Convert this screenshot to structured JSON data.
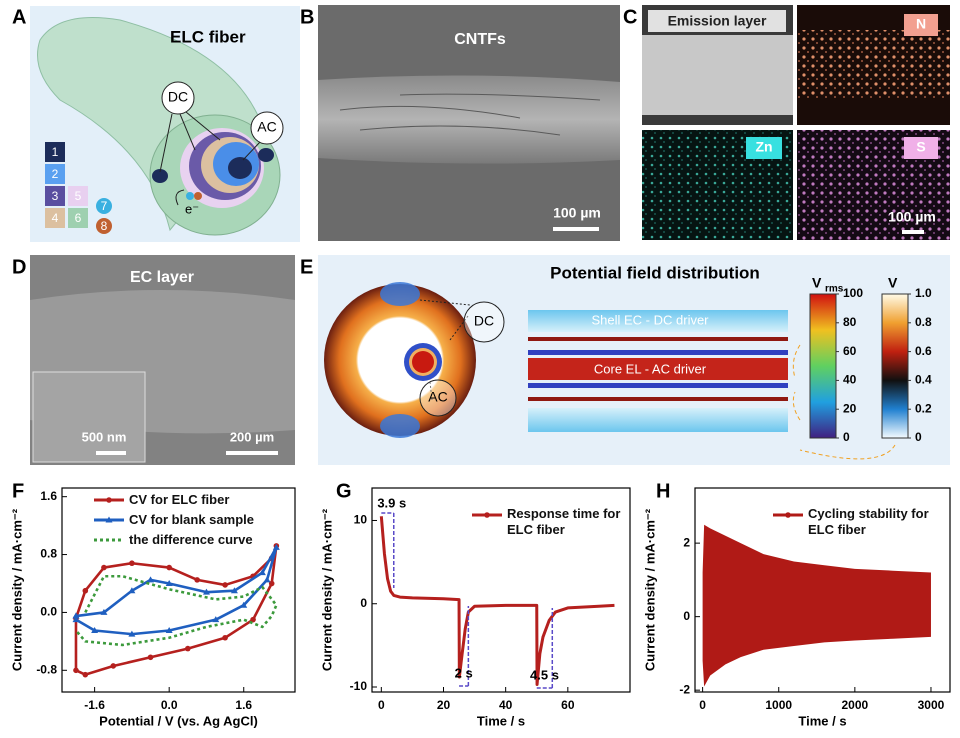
{
  "panels": {
    "A": {
      "label": "A",
      "title": "ELC fiber",
      "dc": "DC",
      "ac": "AC",
      "electron": "e⁻",
      "legend": [
        "1",
        "2",
        "3",
        "4",
        "5",
        "6",
        "7",
        "8"
      ]
    },
    "B": {
      "label": "B",
      "title": "CNTFs",
      "scale_bar": "100 µm"
    },
    "C": {
      "label": "C",
      "tiles": [
        "Emission layer",
        "N",
        "Zn",
        "S"
      ],
      "scale_bar": "100 µm"
    },
    "D": {
      "label": "D",
      "title": "EC layer",
      "inset_scale_bar": "500 nm",
      "scale_bar": "200 µm"
    },
    "E": {
      "label": "E",
      "title": "Potential field distribution",
      "dc": "DC",
      "ac": "AC",
      "shell": "Shell EC - DC driver",
      "core": "Core EL - AC driver",
      "colorbar1": {
        "label": "V",
        "sub": "rms",
        "lim": [
          0,
          100
        ],
        "ticks": [
          100,
          80,
          60,
          40,
          20,
          0
        ]
      },
      "colorbar2": {
        "label": "V",
        "lim": [
          0,
          1
        ],
        "ticks": [
          {
            "value": 1,
            "label": "1.0"
          },
          {
            "value": 0.8,
            "label": "0.8"
          },
          {
            "value": 0.6,
            "label": "0.6"
          },
          {
            "value": 0.4,
            "label": "0.4"
          },
          {
            "value": 0.2,
            "label": "0.2"
          },
          0
        ]
      }
    }
  },
  "chart_data": [
    {
      "type": "line",
      "panel": "F",
      "xlabel": "Potential / V (vs. Ag AgCl)",
      "ylabel": "Current density / mA·cm⁻²",
      "xlim": [
        -2.3,
        2.7
      ],
      "ylim": [
        -1.1,
        1.72
      ],
      "xticks": [
        -1.6,
        {
          "value": 0,
          "label": "0.0"
        },
        1.6
      ],
      "yticks": [
        -0.8,
        {
          "value": 0,
          "label": "0.0"
        },
        0.8,
        1.6
      ],
      "legend": "upper left",
      "series": [
        {
          "name": "CV for ELC fiber",
          "color": "#b5201e",
          "marker": "circle",
          "x": [
            -2.0,
            -1.8,
            -1.4,
            -0.8,
            0.0,
            0.6,
            1.2,
            1.8,
            2.2,
            2.3,
            2.2,
            1.8,
            1.2,
            0.4,
            -0.4,
            -1.2,
            -1.8,
            -2.0,
            -2.0
          ],
          "values": [
            -0.08,
            0.3,
            0.62,
            0.68,
            0.62,
            0.45,
            0.38,
            0.5,
            0.75,
            0.92,
            0.4,
            -0.1,
            -0.35,
            -0.5,
            -0.62,
            -0.74,
            -0.86,
            -0.8,
            -0.08
          ]
        },
        {
          "name": "CV for blank sample",
          "color": "#1f5fc0",
          "marker": "triangle",
          "x": [
            -2.0,
            -1.4,
            -0.8,
            -0.4,
            0.0,
            0.8,
            1.4,
            2.0,
            2.3,
            2.1,
            1.6,
            1.0,
            0.0,
            -0.8,
            -1.6,
            -2.0,
            -2.0
          ],
          "values": [
            -0.05,
            0.0,
            0.3,
            0.45,
            0.4,
            0.28,
            0.3,
            0.55,
            0.9,
            0.45,
            0.1,
            -0.1,
            -0.25,
            -0.3,
            -0.25,
            -0.1,
            -0.05
          ]
        },
        {
          "name": "the difference curve",
          "color": "#3c9a3c",
          "dash": true,
          "x": [
            -1.8,
            -1.4,
            -1.0,
            0.0,
            1.0,
            1.6,
            2.0,
            2.3,
            2.2,
            2.0,
            1.6,
            0.8,
            0.0,
            -1.0,
            -1.8,
            -2.0
          ],
          "values": [
            0.0,
            0.5,
            0.5,
            0.32,
            0.18,
            0.22,
            0.35,
            0.1,
            -0.05,
            -0.2,
            -0.1,
            -0.2,
            -0.35,
            -0.45,
            -0.4,
            -0.25
          ]
        }
      ]
    },
    {
      "type": "line",
      "panel": "G",
      "xlabel": "Time / s",
      "ylabel": "Current density / mA·cm⁻²",
      "xlim": [
        -3,
        80
      ],
      "ylim": [
        -10.6,
        13.9
      ],
      "xticks": [
        0,
        20,
        40,
        60
      ],
      "yticks": [
        -10,
        0,
        10
      ],
      "legend": "upper right",
      "annotations": [
        "3.9 s",
        "2 s",
        "4.5 s"
      ],
      "series": [
        {
          "name": "Response time for ELC fiber",
          "color": "#b5201e",
          "marker": "circle",
          "legend_only_marker": true,
          "x": [
            0,
            1,
            2,
            3,
            4,
            6,
            10,
            20,
            25,
            25.1,
            26,
            27,
            28,
            30,
            40,
            50,
            50.1,
            51,
            52,
            54,
            56,
            60,
            70,
            75
          ],
          "values": [
            10.5,
            6,
            3,
            1.5,
            1,
            0.8,
            0.7,
            0.6,
            0.5,
            -8.8,
            -6,
            -3,
            -1,
            -0.3,
            -0.2,
            -0.2,
            -9.7,
            -6,
            -4,
            -2,
            -1,
            -0.5,
            -0.3,
            -0.2
          ]
        }
      ]
    },
    {
      "type": "area",
      "panel": "H",
      "xlabel": "Time / s",
      "ylabel": "Current density / mA·cm⁻²",
      "xlim": [
        -100,
        3250
      ],
      "ylim": [
        -2.05,
        3.5
      ],
      "xticks": [
        0,
        1000,
        2000,
        3000
      ],
      "yticks": [
        -2,
        0,
        2
      ],
      "legend": "upper right",
      "series": [
        {
          "name": "Cycling stability for ELC fiber",
          "color": "#b01a16",
          "x": [
            0,
            20,
            100,
            300,
            500,
            800,
            1200,
            1600,
            2000,
            2500,
            3000
          ],
          "upper": [
            1.2,
            2.5,
            2.4,
            2.2,
            2.0,
            1.7,
            1.5,
            1.4,
            1.3,
            1.25,
            1.2
          ],
          "lower": [
            -1.2,
            -1.9,
            -1.6,
            -1.3,
            -1.1,
            -0.9,
            -0.8,
            -0.7,
            -0.65,
            -0.6,
            -0.55
          ]
        }
      ]
    }
  ]
}
